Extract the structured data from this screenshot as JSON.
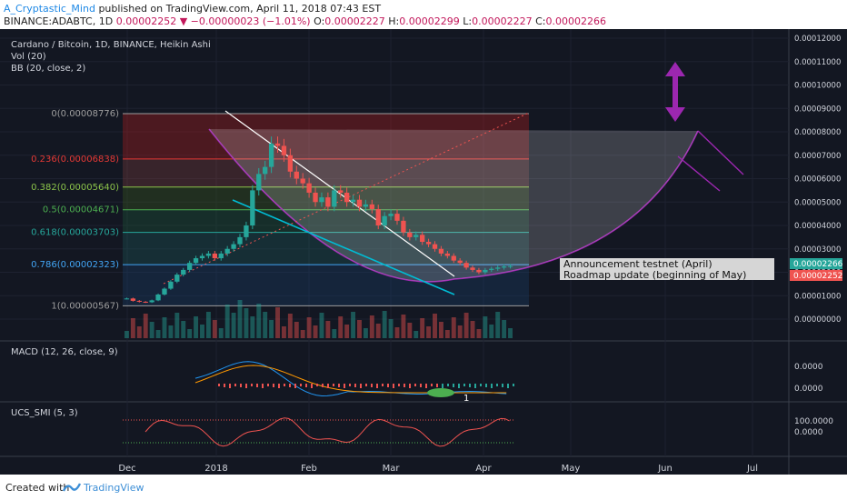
{
  "header": {
    "author": "A_Cryptastic_Mind",
    "published": "published on TradingView.com, April 11, 2018 07:43 EST",
    "symbol": "BINANCE:ADABTC, 1D",
    "last": "0.00002252",
    "change": "−0.00000023 (−1.01%)",
    "o_label": "O:",
    "o": "0.00002227",
    "h_label": "H:",
    "h": "0.00002299",
    "l_label": "L:",
    "l": "0.00002227",
    "c_label": "C:",
    "c": "0.00002266"
  },
  "legend": {
    "title": "Cardano / Bitcoin, 1D, BINANCE, Heikin Ashi",
    "vol": "Vol (20)",
    "bb": "BB (20, close, 2)"
  },
  "fib_levels": [
    {
      "label": "0(0.00008776)",
      "value": 8.776e-05,
      "color": "#9e9e9e"
    },
    {
      "label": "0.236(0.00006838)",
      "value": 6.838e-05,
      "color": "#e53935"
    },
    {
      "label": "0.382(0.00005640)",
      "value": 5.64e-05,
      "color": "#8bc34a"
    },
    {
      "label": "0.5(0.00004671)",
      "value": 4.671e-05,
      "color": "#4caf50"
    },
    {
      "label": "0.618(0.00003703)",
      "value": 3.703e-05,
      "color": "#26a69a"
    },
    {
      "label": "0.786(0.00002323)",
      "value": 2.323e-05,
      "color": "#42a5f5"
    },
    {
      "label": "1(0.00000567)",
      "value": 5.67e-06,
      "color": "#9e9e9e"
    }
  ],
  "annotations": {
    "line1": "Announcement testnet (April)",
    "line2": "Roadmap update (beginning of May)",
    "marker": "1"
  },
  "price_badges": {
    "close": "0.00002266",
    "last": "0.00002252"
  },
  "macd": {
    "title": "MACD (12, 26, close, 9)",
    "ticks": [
      "0.0000",
      "0.0000"
    ]
  },
  "smi": {
    "title": "UCS_SMI (5, 3)",
    "ticks": [
      "100.0000",
      "0.0000"
    ]
  },
  "footer": {
    "created": "Created with",
    "brand": "TradingView"
  },
  "colors": {
    "bg": "#131722",
    "up": "#26a69a",
    "down": "#ef5350",
    "purple": "#9c27b0",
    "cyan": "#00bcd4"
  },
  "chart_data": {
    "type": "candlestick",
    "title": "Cardano / Bitcoin, 1D, BINANCE, Heikin Ashi",
    "x_ticks": [
      "Dec",
      "2018",
      "Feb",
      "Mar",
      "Apr",
      "May",
      "Jun",
      "Jul"
    ],
    "y_ticks": [
      "0.00012000",
      "0.00011000",
      "0.00010000",
      "0.00009000",
      "0.00008000",
      "0.00007000",
      "0.00006000",
      "0.00005000",
      "0.00004000",
      "0.00003000",
      "0.00002000",
      "0.00001000",
      "0.00000000"
    ],
    "ylim": [
      0,
      0.00012
    ],
    "series": [
      {
        "name": "Close",
        "values": [
          8.8e-06,
          7.8e-06,
          7.4e-06,
          7.2e-06,
          8e-06,
          1.05e-05,
          1.3e-05,
          1.6e-05,
          1.9e-05,
          2.1e-05,
          2.4e-05,
          2.6e-05,
          2.7e-05,
          2.8e-05,
          2.6e-05,
          2.8e-05,
          3e-05,
          3.2e-05,
          3.5e-05,
          4e-05,
          5.5e-05,
          6.2e-05,
          6.5e-05,
          7.5e-05,
          7.4e-05,
          7e-05,
          6.3e-05,
          6e-05,
          5.8e-05,
          5.4e-05,
          5e-05,
          5.2e-05,
          4.8e-05,
          5.5e-05,
          5.4e-05,
          5e-05,
          5.1e-05,
          4.8e-05,
          4.9e-05,
          4.7e-05,
          4e-05,
          4.4e-05,
          4.5e-05,
          4.2e-05,
          3.7e-05,
          3.5e-05,
          3.6e-05,
          3.3e-05,
          3.2e-05,
          3e-05,
          2.8e-05,
          2.7e-05,
          2.5e-05,
          2.4e-05,
          2.2e-05,
          2.1e-05,
          2e-05,
          2.1e-05,
          2.15e-05,
          2.2e-05,
          2.25e-05,
          2.266e-05
        ]
      }
    ],
    "fib_retracement": [
      8.776e-05,
      6.838e-05,
      5.64e-05,
      4.671e-05,
      3.703e-05,
      2.323e-05,
      5.67e-06
    ]
  }
}
